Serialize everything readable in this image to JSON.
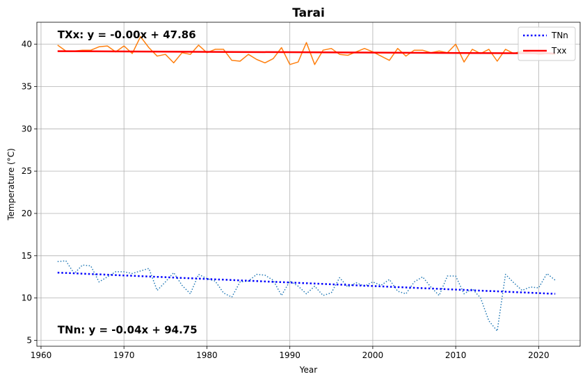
{
  "chart_data": {
    "type": "line",
    "title": "Tarai",
    "xlabel": "Year",
    "ylabel": "Temperature (°C)",
    "xlim": [
      1959.5,
      2025
    ],
    "ylim": [
      4.3,
      42.6
    ],
    "xticks": [
      1960,
      1970,
      1980,
      1990,
      2000,
      2010,
      2020
    ],
    "yticks": [
      5,
      10,
      15,
      20,
      25,
      30,
      35,
      40
    ],
    "grid": true,
    "legend_position": "top-right",
    "legend": [
      {
        "label": "TNn",
        "color": "#0000ff",
        "style": "dotted"
      },
      {
        "label": "Txx",
        "color": "#ff0000",
        "style": "solid"
      }
    ],
    "annotations": [
      {
        "text": "TXx: y = -0.00x + 47.86",
        "x": 1962,
        "y": 40.7
      },
      {
        "text": "TNn: y = -0.04x + 94.75",
        "x": 1962,
        "y": 5.8
      }
    ],
    "series": [
      {
        "key": "txx_obs",
        "color": "#ff7f0e",
        "style": "solid",
        "x": [
          1962,
          1963,
          1964,
          1965,
          1966,
          1967,
          1968,
          1969,
          1970,
          1971,
          1972,
          1973,
          1974,
          1975,
          1976,
          1977,
          1978,
          1979,
          1980,
          1981,
          1982,
          1983,
          1984,
          1985,
          1986,
          1987,
          1988,
          1989,
          1990,
          1991,
          1992,
          1993,
          1994,
          1995,
          1996,
          1997,
          1998,
          1999,
          2000,
          2001,
          2002,
          2003,
          2004,
          2005,
          2006,
          2007,
          2008,
          2009,
          2010,
          2011,
          2012,
          2013,
          2014,
          2015,
          2016,
          2017,
          2018,
          2019,
          2020,
          2021,
          2022
        ],
        "values": [
          39.9,
          39.2,
          39.2,
          39.3,
          39.3,
          39.7,
          39.8,
          39.1,
          39.8,
          38.9,
          40.9,
          39.6,
          38.6,
          38.8,
          37.8,
          39.0,
          38.8,
          39.9,
          39.0,
          39.4,
          39.4,
          38.1,
          38.0,
          38.8,
          38.2,
          37.8,
          38.3,
          39.6,
          37.6,
          37.9,
          40.2,
          37.6,
          39.3,
          39.5,
          38.8,
          38.7,
          39.1,
          39.5,
          39.1,
          38.6,
          38.1,
          39.5,
          38.6,
          39.3,
          39.3,
          39.0,
          39.2,
          39.0,
          40.0,
          37.9,
          39.4,
          38.9,
          39.4,
          38.0,
          39.4,
          38.9,
          39.2,
          39.0,
          38.8,
          38.9,
          38.8
        ]
      },
      {
        "key": "txx_trend",
        "name": "Txx",
        "color": "#ff0000",
        "style": "solid",
        "x": [
          1962,
          2022
        ],
        "values": [
          39.18,
          38.92
        ]
      },
      {
        "key": "tnn_obs",
        "color": "#1f77b4",
        "style": "dotted",
        "x": [
          1962,
          1963,
          1964,
          1965,
          1966,
          1967,
          1968,
          1969,
          1970,
          1971,
          1972,
          1973,
          1974,
          1975,
          1976,
          1977,
          1978,
          1979,
          1980,
          1981,
          1982,
          1983,
          1984,
          1985,
          1986,
          1987,
          1988,
          1989,
          1990,
          1991,
          1992,
          1993,
          1994,
          1995,
          1996,
          1997,
          1998,
          1999,
          2000,
          2001,
          2002,
          2003,
          2004,
          2005,
          2006,
          2007,
          2008,
          2009,
          2010,
          2011,
          2012,
          2013,
          2014,
          2015,
          2016,
          2017,
          2018,
          2019,
          2020,
          2021,
          2022
        ],
        "values": [
          14.3,
          14.4,
          12.9,
          13.9,
          13.8,
          11.9,
          12.5,
          13.1,
          13.1,
          12.9,
          13.2,
          13.5,
          10.9,
          11.9,
          13.0,
          11.5,
          10.5,
          12.8,
          12.3,
          12.0,
          10.6,
          10.1,
          11.9,
          12.0,
          12.8,
          12.7,
          12.1,
          10.3,
          12.0,
          11.4,
          10.5,
          11.4,
          10.3,
          10.6,
          12.4,
          11.3,
          11.8,
          11.4,
          11.9,
          11.5,
          12.2,
          10.8,
          10.5,
          11.9,
          12.5,
          11.3,
          10.3,
          12.6,
          12.6,
          10.5,
          11.1,
          10.0,
          7.3,
          6.1,
          12.8,
          11.8,
          10.9,
          11.3,
          11.2,
          12.9,
          12.1
        ]
      },
      {
        "key": "tnn_trend",
        "name": "TNn",
        "color": "#0000ff",
        "style": "dotted",
        "x": [
          1962,
          2022
        ],
        "values": [
          13.0,
          10.5
        ]
      }
    ]
  }
}
